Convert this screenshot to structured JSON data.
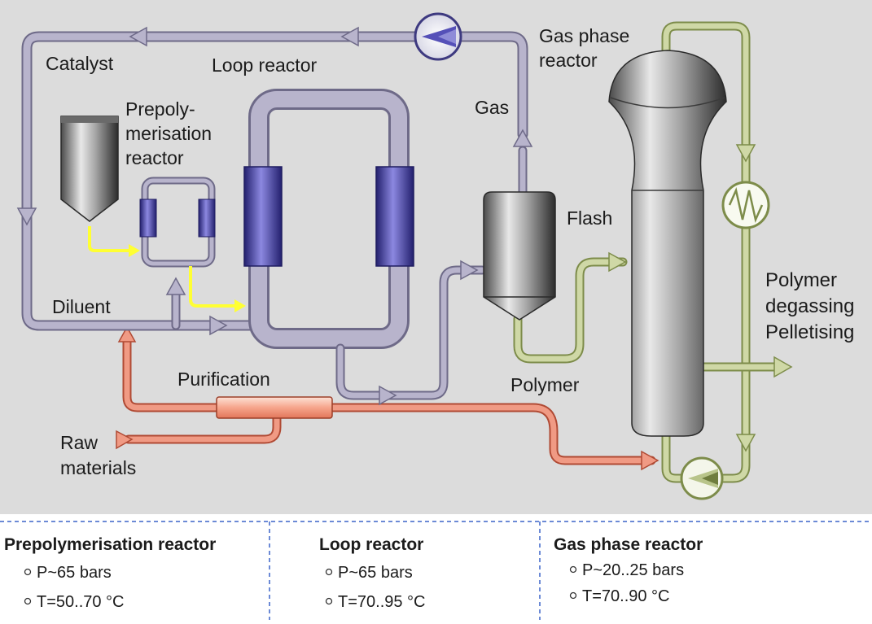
{
  "diagram": {
    "labels": {
      "catalyst": "Catalyst",
      "loop_reactor": "Loop reactor",
      "prepoly_1": "Prepoly-",
      "prepoly_2": "merisation",
      "prepoly_3": "reactor",
      "gas": "Gas",
      "gas_phase_1": "Gas phase",
      "gas_phase_2": "reactor",
      "flash": "Flash",
      "diluent": "Diluent",
      "purification": "Purification",
      "polymer": "Polymer",
      "raw_1": "Raw",
      "raw_2": "materials",
      "out_1": "Polymer",
      "out_2": "degassing",
      "out_3": "Pelletising"
    }
  },
  "conditions": [
    {
      "title": "Prepolymerisation reactor",
      "pressure": "P~65 bars",
      "temperature": "T=50..70 °C"
    },
    {
      "title": "Loop reactor",
      "pressure": "P~65 bars",
      "temperature": "T=70..95 °C"
    },
    {
      "title": "Gas phase reactor",
      "pressure": "P~20..25 bars",
      "temperature": "T=70..90 °C"
    }
  ],
  "colors": {
    "background": "#dcdcdc",
    "loop_pipe": "#b8b4cc",
    "loop_pipe_edge": "#6e6a88",
    "raw_pipe": "#f09a84",
    "raw_pipe_edge": "#b04a34",
    "polymer_pipe": "#cfd8a6",
    "polymer_pipe_edge": "#7d8c4a",
    "catalyst_arrow": "#ffff33",
    "jacket": "#4a46a8",
    "divider": "#3c64c8"
  }
}
